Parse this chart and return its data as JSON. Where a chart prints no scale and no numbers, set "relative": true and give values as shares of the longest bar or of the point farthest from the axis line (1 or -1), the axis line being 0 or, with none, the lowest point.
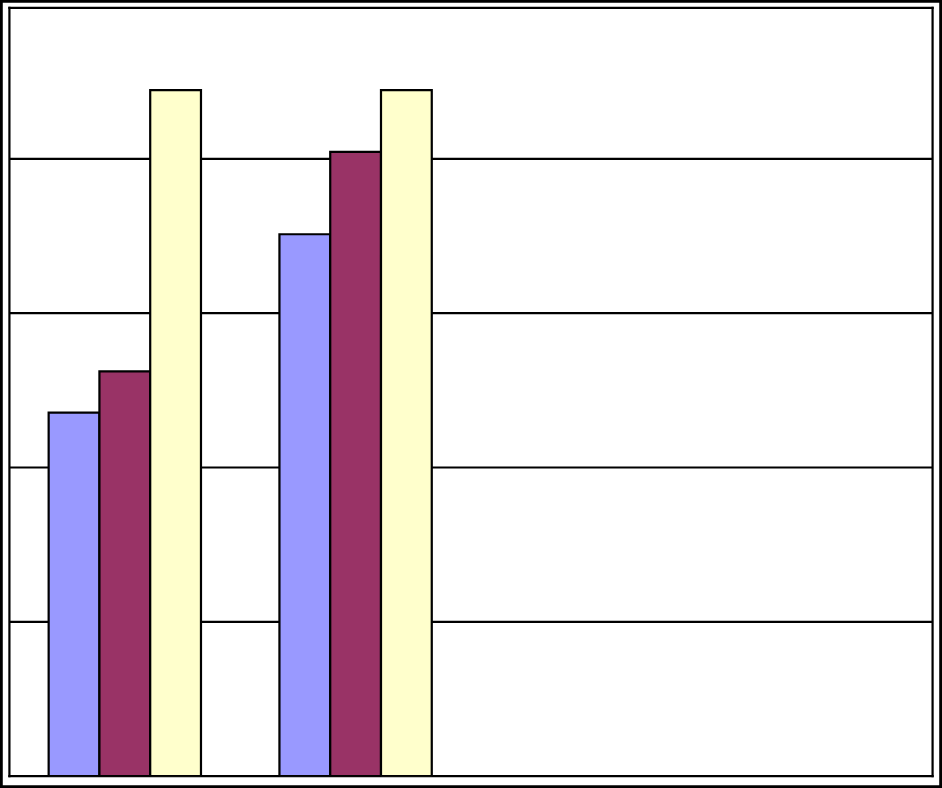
{
  "chart_data": {
    "type": "bar",
    "relative": true,
    "grid": "y",
    "legend": false,
    "categories": [
      null,
      null
    ],
    "series": [
      {
        "color": "#9999ff",
        "values": [
          0.53,
          0.79
        ]
      },
      {
        "color": "#993366",
        "values": [
          0.59,
          0.91
        ]
      },
      {
        "color": "#ffffcc",
        "values": [
          1,
          1
        ]
      }
    ]
  }
}
